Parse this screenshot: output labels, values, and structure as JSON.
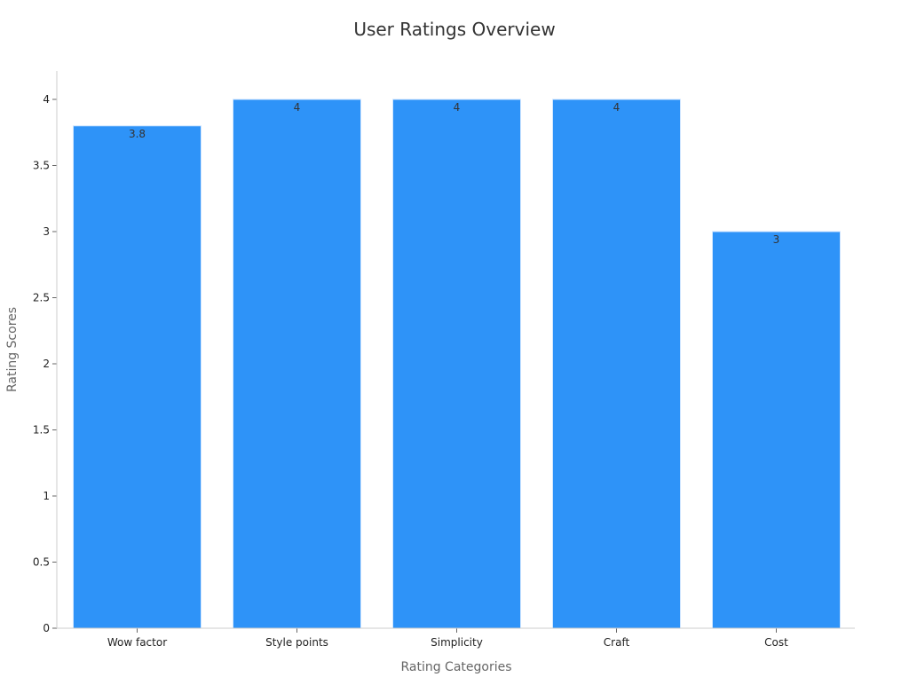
{
  "chart_data": {
    "type": "bar",
    "title": "User Ratings Overview",
    "xlabel": "Rating Categories",
    "ylabel": "Rating Scores",
    "categories": [
      "Wow factor",
      "Style points",
      "Simplicity",
      "Craft",
      "Cost"
    ],
    "values": [
      3.8,
      4,
      4,
      4,
      3
    ],
    "data_labels": [
      "3.8",
      "4",
      "4",
      "4",
      "3"
    ],
    "ylim": [
      0,
      4.2
    ],
    "yticks": [
      0,
      0.5,
      1,
      1.5,
      2,
      2.5,
      3,
      3.5,
      4
    ],
    "ytick_labels": [
      "0",
      "0.5",
      "1",
      "1.5",
      "2",
      "2.5",
      "3",
      "3.5",
      "4"
    ],
    "grid": false,
    "legend": "none",
    "bar_color": "#2E93F8"
  }
}
